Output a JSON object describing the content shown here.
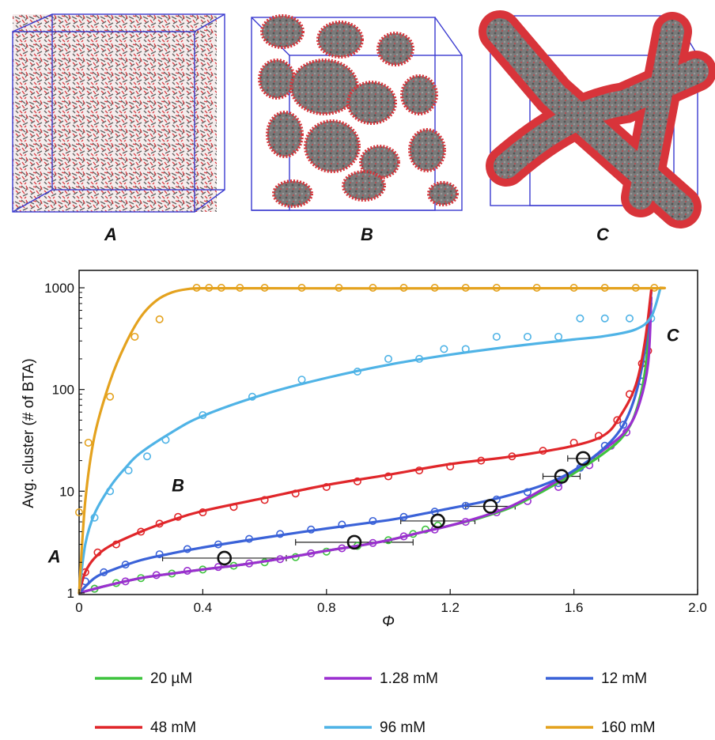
{
  "snapshots": [
    {
      "label": "A",
      "morphology": "dispersed"
    },
    {
      "label": "B",
      "morphology": "clusters"
    },
    {
      "label": "C",
      "morphology": "fibers"
    }
  ],
  "colors": {
    "molecule_red": "#d8343a",
    "molecule_grey": "#6e6e6e",
    "box_blue": "#3a3ad0"
  },
  "chart_data": {
    "type": "line",
    "title": "",
    "xlabel": "Φ",
    "ylabel": "Avg. cluster (# of BTA)",
    "xlim": [
      0,
      2.0
    ],
    "ylim": [
      1,
      1000
    ],
    "yscale": "log",
    "xticks": [
      "0",
      "0.4",
      "0.8",
      "1.2",
      "1.6",
      "2.0"
    ],
    "yticks": [
      "1",
      "10",
      "100",
      "1000"
    ],
    "grid": false,
    "legend_position": "bottom",
    "annotations": [
      {
        "text": "A",
        "x": -0.08,
        "y": 2.0
      },
      {
        "text": "B",
        "x": 0.32,
        "y": 10
      },
      {
        "text": "C",
        "x": 1.92,
        "y": 300
      }
    ],
    "series": [
      {
        "name": "20 µM",
        "color": "#3ec43e",
        "x": [
          0,
          0.1,
          0.2,
          0.3,
          0.4,
          0.5,
          0.6,
          0.7,
          0.8,
          0.9,
          1.0,
          1.1,
          1.2,
          1.3,
          1.4,
          1.5,
          1.6,
          1.7,
          1.76,
          1.8,
          1.83,
          1.85
        ],
        "y": [
          1.0,
          1.2,
          1.4,
          1.55,
          1.7,
          1.85,
          2.05,
          2.3,
          2.6,
          2.9,
          3.3,
          3.9,
          4.6,
          5.5,
          7.0,
          10,
          15,
          24,
          35,
          60,
          150,
          700
        ]
      },
      {
        "name": "1.28 mM",
        "color": "#9b2fd0",
        "x": [
          0,
          0.1,
          0.2,
          0.3,
          0.4,
          0.5,
          0.6,
          0.7,
          0.8,
          0.9,
          1.0,
          1.1,
          1.2,
          1.3,
          1.4,
          1.5,
          1.6,
          1.7,
          1.77,
          1.81,
          1.84,
          1.85
        ],
        "y": [
          1.0,
          1.2,
          1.4,
          1.55,
          1.7,
          1.85,
          2.05,
          2.3,
          2.6,
          2.9,
          3.3,
          3.9,
          4.6,
          5.6,
          7.2,
          10.5,
          16,
          26,
          40,
          70,
          180,
          800
        ]
      },
      {
        "name": "12 mM",
        "color": "#3a62d8",
        "x": [
          0,
          0.05,
          0.1,
          0.2,
          0.3,
          0.4,
          0.6,
          0.8,
          1.0,
          1.1,
          1.2,
          1.3,
          1.4,
          1.5,
          1.6,
          1.7,
          1.76,
          1.8,
          1.83,
          1.85
        ],
        "y": [
          1.0,
          1.4,
          1.65,
          2.1,
          2.45,
          2.8,
          3.5,
          4.3,
          5.2,
          5.9,
          6.8,
          7.8,
          9.3,
          11.5,
          16,
          27,
          45,
          90,
          250,
          900
        ]
      },
      {
        "name": "48 mM",
        "color": "#e0262a",
        "x": [
          0,
          0.02,
          0.05,
          0.1,
          0.2,
          0.3,
          0.4,
          0.6,
          0.8,
          1.0,
          1.2,
          1.4,
          1.6,
          1.7,
          1.75,
          1.8,
          1.83,
          1.85
        ],
        "y": [
          1.0,
          1.6,
          2.2,
          2.9,
          4.0,
          5.2,
          6.4,
          8.6,
          11.5,
          14.5,
          18.5,
          22,
          28,
          36,
          55,
          110,
          300,
          950
        ]
      },
      {
        "name": "96 mM",
        "color": "#4fb3e6",
        "x": [
          0,
          0.02,
          0.05,
          0.1,
          0.15,
          0.2,
          0.3,
          0.4,
          0.6,
          0.8,
          1.0,
          1.2,
          1.4,
          1.6,
          1.7,
          1.8,
          1.85,
          1.88
        ],
        "y": [
          1.0,
          3.0,
          6.0,
          11,
          17,
          24,
          38,
          55,
          90,
          130,
          175,
          220,
          265,
          310,
          335,
          390,
          520,
          1000
        ]
      },
      {
        "name": "160 mM",
        "color": "#e4a21e",
        "x": [
          0,
          0.02,
          0.05,
          0.1,
          0.15,
          0.2,
          0.25,
          0.3,
          0.35,
          0.4,
          0.6,
          1.0,
          1.4,
          1.85,
          1.88
        ],
        "y": [
          1.0,
          8,
          35,
          120,
          280,
          520,
          750,
          900,
          970,
          990,
          990,
          985,
          990,
          990,
          1000
        ]
      }
    ],
    "scatter": [
      {
        "series": "160 mM",
        "x": [
          0.0,
          0.03,
          0.1,
          0.18,
          0.26,
          0.38,
          0.42,
          0.46,
          0.52,
          0.6,
          0.72,
          0.84,
          0.95,
          1.05,
          1.15,
          1.25,
          1.35,
          1.48,
          1.6,
          1.7,
          1.8,
          1.86
        ],
        "y": [
          6.2,
          30,
          85,
          330,
          490,
          1000,
          1000,
          1000,
          1000,
          1000,
          1000,
          1000,
          1000,
          1000,
          1000,
          1000,
          1000,
          1000,
          1000,
          1000,
          1000,
          1000
        ]
      },
      {
        "series": "96 mM",
        "x": [
          0.05,
          0.1,
          0.16,
          0.22,
          0.28,
          0.4,
          0.56,
          0.72,
          0.9,
          1.0,
          1.1,
          1.18,
          1.25,
          1.35,
          1.45,
          1.55,
          1.62,
          1.7,
          1.78,
          1.85
        ],
        "y": [
          5.5,
          10,
          16,
          22,
          32,
          56,
          85,
          125,
          150,
          200,
          200,
          250,
          250,
          330,
          330,
          330,
          500,
          500,
          500,
          500
        ]
      },
      {
        "series": "48 mM",
        "x": [
          0.02,
          0.06,
          0.12,
          0.2,
          0.26,
          0.32,
          0.4,
          0.5,
          0.6,
          0.7,
          0.8,
          0.9,
          1.0,
          1.1,
          1.2,
          1.3,
          1.4,
          1.5,
          1.6,
          1.68,
          1.74,
          1.78,
          1.82,
          1.84
        ],
        "y": [
          1.6,
          2.5,
          3.0,
          4.0,
          4.8,
          5.6,
          6.2,
          7.0,
          8.2,
          9.5,
          11,
          12.5,
          14,
          16,
          17.5,
          20,
          22,
          25,
          30,
          35,
          50,
          90,
          180,
          240
        ]
      },
      {
        "series": "12 mM",
        "x": [
          0.02,
          0.08,
          0.15,
          0.26,
          0.35,
          0.45,
          0.55,
          0.65,
          0.75,
          0.85,
          0.95,
          1.05,
          1.15,
          1.25,
          1.35,
          1.45,
          1.55,
          1.62,
          1.7,
          1.76,
          1.82
        ],
        "y": [
          1.3,
          1.6,
          1.9,
          2.4,
          2.7,
          3.0,
          3.4,
          3.8,
          4.2,
          4.7,
          5.1,
          5.6,
          6.3,
          7.2,
          8.3,
          9.8,
          12,
          17,
          28,
          45,
          120
        ]
      },
      {
        "series": "1.28 mM",
        "x": [
          0.05,
          0.15,
          0.25,
          0.35,
          0.45,
          0.55,
          0.65,
          0.75,
          0.85,
          0.95,
          1.05,
          1.15,
          1.25,
          1.35,
          1.45,
          1.55,
          1.65,
          1.72,
          1.77
        ],
        "y": [
          1.1,
          1.3,
          1.5,
          1.65,
          1.8,
          1.95,
          2.15,
          2.45,
          2.75,
          3.1,
          3.6,
          4.2,
          5.0,
          6.2,
          8.0,
          11,
          18,
          28,
          38
        ]
      },
      {
        "series": "20 µM",
        "x": [
          0.05,
          0.12,
          0.2,
          0.3,
          0.4,
          0.5,
          0.6,
          0.7,
          0.8,
          0.9,
          1.0,
          1.08,
          1.12,
          1.16
        ],
        "y": [
          1.1,
          1.25,
          1.4,
          1.55,
          1.7,
          1.85,
          2.0,
          2.25,
          2.55,
          2.9,
          3.3,
          3.8,
          4.2,
          4.6
        ]
      }
    ],
    "means": [
      {
        "x": 0.47,
        "y": 2.2,
        "xerr": 0.2
      },
      {
        "x": 0.89,
        "y": 3.15,
        "xerr": 0.19
      },
      {
        "x": 1.16,
        "y": 5.1,
        "xerr": 0.12
      },
      {
        "x": 1.33,
        "y": 7.1,
        "xerr": 0.08
      },
      {
        "x": 1.56,
        "y": 14,
        "xerr": 0.06
      },
      {
        "x": 1.63,
        "y": 21,
        "xerr": 0.05
      }
    ]
  }
}
